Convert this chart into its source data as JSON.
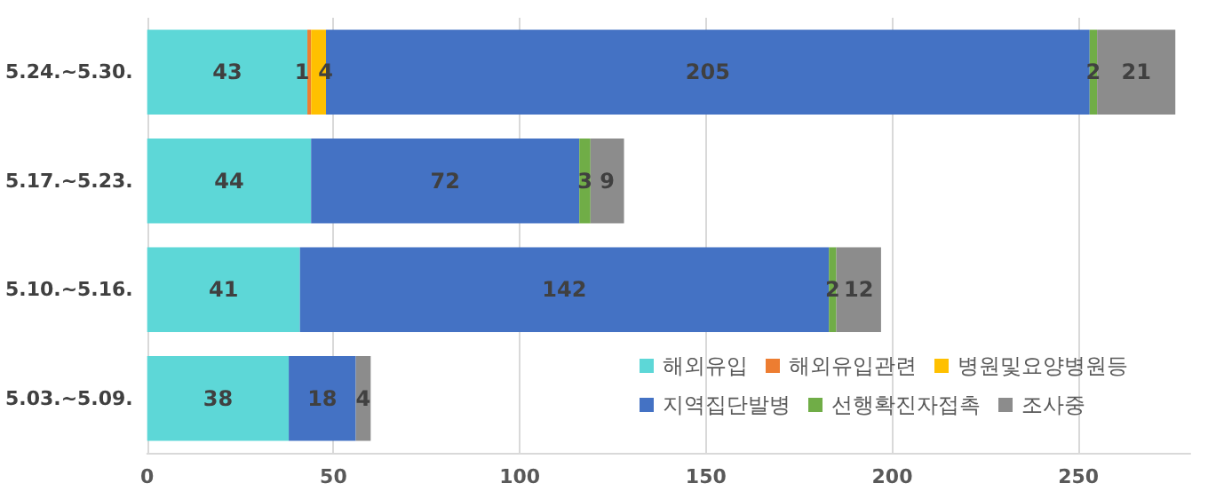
{
  "chart_data": {
    "type": "bar",
    "orientation": "horizontal",
    "stacked": true,
    "categories": [
      "5.24.~5.30.",
      "5.17.~5.23.",
      "5.10.~5.16.",
      "5.03.~5.09."
    ],
    "series": [
      {
        "name": "해외유입",
        "color": "#5dd7d7",
        "values": [
          43,
          44,
          41,
          38
        ],
        "value_labels": [
          "43",
          "44",
          "41",
          "38"
        ]
      },
      {
        "name": "해외유입관련",
        "color": "#ed7d31",
        "values": [
          1,
          0,
          0,
          0
        ],
        "value_labels": [
          "1",
          null,
          null,
          null
        ]
      },
      {
        "name": "병원및요양병원등",
        "color": "#ffc000",
        "values": [
          4,
          0,
          0,
          0
        ],
        "value_labels": [
          "4",
          null,
          null,
          null
        ]
      },
      {
        "name": "지역집단발병",
        "color": "#4472c4",
        "values": [
          205,
          72,
          142,
          18
        ],
        "value_labels": [
          "205",
          "72",
          "142",
          "18"
        ]
      },
      {
        "name": "선행확진자접촉",
        "color": "#70ad47",
        "values": [
          2,
          3,
          2,
          0
        ],
        "value_labels": [
          "2",
          "3",
          "2",
          null
        ]
      },
      {
        "name": "조사중",
        "color": "#8c8c8c",
        "values": [
          21,
          9,
          12,
          4
        ],
        "value_labels": [
          "21",
          "9",
          "12",
          "4"
        ]
      }
    ],
    "xlim": [
      0,
      280
    ],
    "xticks": [
      0,
      50,
      100,
      150,
      200,
      250
    ],
    "grid": "x",
    "legend": "bottom right"
  }
}
